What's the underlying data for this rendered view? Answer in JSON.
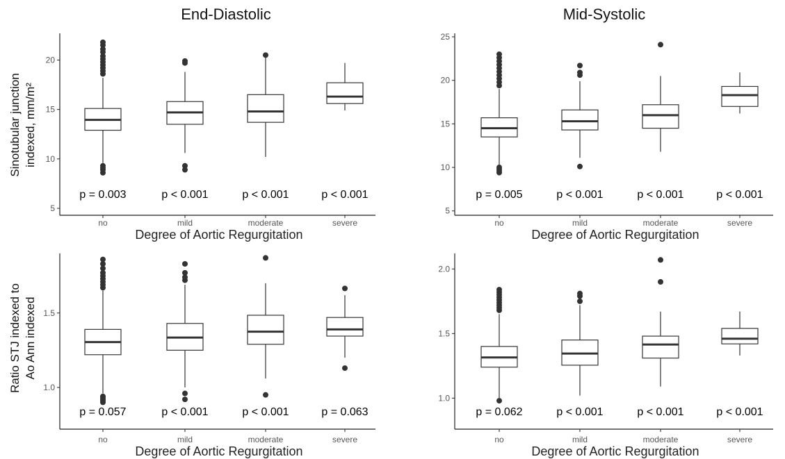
{
  "column_titles": [
    "End-Diastolic",
    "Mid-Systolic"
  ],
  "row_ylabels": [
    [
      "Sinotubular junction",
      "indexed, mm/m²"
    ],
    [
      "Ratio STJ indexed to",
      "Ao Ann indexed"
    ]
  ],
  "chart_data": [
    {
      "type": "box",
      "panel": "top-left",
      "title": "End-Diastolic",
      "xlabel": "Degree of Aortic Regurgitation",
      "ylabel": "Sinotubular junction indexed, mm/m²",
      "ylim": [
        4.3,
        22.7
      ],
      "yticks": [
        5,
        10,
        15,
        20
      ],
      "ytick_labels": [
        "5",
        "10",
        "15",
        "20"
      ],
      "categories": [
        "no",
        "mild",
        "moderate",
        "severe"
      ],
      "boxes": [
        {
          "whisker_low": 9.6,
          "q1": 12.9,
          "median": 13.95,
          "q3": 15.1,
          "whisker_high": 18.2,
          "outliers": [
            21.8,
            21.5,
            21.1,
            20.8,
            20.4,
            20.1,
            19.8,
            19.5,
            19.2,
            18.9,
            18.6,
            9.3,
            9.1,
            8.9,
            8.6
          ]
        },
        {
          "whisker_low": 10.6,
          "q1": 13.5,
          "median": 14.7,
          "q3": 15.8,
          "whisker_high": 18.8,
          "outliers": [
            19.9,
            19.7,
            9.3,
            8.9
          ]
        },
        {
          "whisker_low": 10.2,
          "q1": 13.7,
          "median": 14.8,
          "q3": 16.5,
          "whisker_high": 20.3,
          "outliers": [
            20.5
          ]
        },
        {
          "whisker_low": 14.9,
          "q1": 15.6,
          "median": 16.3,
          "q3": 17.7,
          "whisker_high": 19.7,
          "outliers": []
        }
      ],
      "pvalues": [
        "p = 0.003",
        "p < 0.001",
        "p < 0.001",
        "p < 0.001"
      ]
    },
    {
      "type": "box",
      "panel": "top-right",
      "title": "Mid-Systolic",
      "xlabel": "Degree of Aortic Regurgitation",
      "ylabel": "",
      "ylim": [
        4.5,
        25.4
      ],
      "yticks": [
        5,
        10,
        15,
        20,
        25
      ],
      "ytick_labels": [
        "5",
        "10",
        "15",
        "20",
        "25"
      ],
      "categories": [
        "no",
        "mild",
        "moderate",
        "severe"
      ],
      "boxes": [
        {
          "whisker_low": 10.3,
          "q1": 13.5,
          "median": 14.5,
          "q3": 15.7,
          "whisker_high": 19.0,
          "outliers": [
            23.0,
            22.6,
            22.2,
            21.8,
            21.4,
            21.0,
            20.6,
            20.2,
            19.8,
            19.4,
            10.0,
            9.8,
            9.6,
            9.4
          ]
        },
        {
          "whisker_low": 11.1,
          "q1": 14.3,
          "median": 15.3,
          "q3": 16.6,
          "whisker_high": 19.9,
          "outliers": [
            21.7,
            20.9,
            20.6,
            10.1
          ]
        },
        {
          "whisker_low": 11.8,
          "q1": 14.5,
          "median": 16.0,
          "q3": 17.2,
          "whisker_high": 20.5,
          "outliers": [
            24.1
          ]
        },
        {
          "whisker_low": 16.2,
          "q1": 17.0,
          "median": 18.3,
          "q3": 19.3,
          "whisker_high": 20.9,
          "outliers": []
        }
      ],
      "pvalues": [
        "p = 0.005",
        "p < 0.001",
        "p < 0.001",
        "p < 0.001"
      ]
    },
    {
      "type": "box",
      "panel": "bottom-left",
      "title": "",
      "xlabel": "Degree of Aortic Regurgitation",
      "ylabel": "Ratio STJ indexed to Ao Ann indexed",
      "ylim": [
        0.72,
        1.9
      ],
      "yticks": [
        1.0,
        1.5
      ],
      "ytick_labels": [
        "1.0",
        "1.5"
      ],
      "categories": [
        "no",
        "mild",
        "moderate",
        "severe"
      ],
      "boxes": [
        {
          "whisker_low": 0.96,
          "q1": 1.22,
          "median": 1.305,
          "q3": 1.39,
          "whisker_high": 1.65,
          "outliers": [
            1.86,
            1.83,
            1.8,
            1.77,
            1.75,
            1.73,
            1.71,
            1.69,
            1.67,
            0.94,
            0.93,
            0.92,
            0.91,
            0.9
          ]
        },
        {
          "whisker_low": 1.0,
          "q1": 1.25,
          "median": 1.335,
          "q3": 1.43,
          "whisker_high": 1.69,
          "outliers": [
            1.83,
            1.77,
            1.74,
            1.72,
            0.96,
            0.92
          ]
        },
        {
          "whisker_low": 1.06,
          "q1": 1.29,
          "median": 1.375,
          "q3": 1.485,
          "whisker_high": 1.7,
          "outliers": [
            1.87,
            0.95
          ]
        },
        {
          "whisker_low": 1.2,
          "q1": 1.345,
          "median": 1.39,
          "q3": 1.47,
          "whisker_high": 1.62,
          "outliers": [
            1.665,
            1.13
          ]
        }
      ],
      "pvalues": [
        "p = 0.057",
        "p < 0.001",
        "p < 0.001",
        "p = 0.063"
      ]
    },
    {
      "type": "box",
      "panel": "bottom-right",
      "title": "",
      "xlabel": "Degree of Aortic Regurgitation",
      "ylabel": "",
      "ylim": [
        0.76,
        2.12
      ],
      "yticks": [
        1.0,
        1.5,
        2.0
      ],
      "ytick_labels": [
        "1.0",
        "1.5",
        "2.0"
      ],
      "categories": [
        "no",
        "mild",
        "moderate",
        "severe"
      ],
      "boxes": [
        {
          "whisker_low": 1.0,
          "q1": 1.24,
          "median": 1.315,
          "q3": 1.4,
          "whisker_high": 1.65,
          "outliers": [
            1.84,
            1.82,
            1.8,
            1.78,
            1.76,
            1.74,
            1.72,
            1.7,
            1.68,
            0.98
          ]
        },
        {
          "whisker_low": 1.02,
          "q1": 1.255,
          "median": 1.345,
          "q3": 1.45,
          "whisker_high": 1.72,
          "outliers": [
            1.81,
            1.79,
            1.75
          ]
        },
        {
          "whisker_low": 1.09,
          "q1": 1.31,
          "median": 1.415,
          "q3": 1.48,
          "whisker_high": 1.67,
          "outliers": [
            2.07,
            1.9
          ]
        },
        {
          "whisker_low": 1.33,
          "q1": 1.42,
          "median": 1.46,
          "q3": 1.54,
          "whisker_high": 1.67,
          "outliers": []
        }
      ],
      "pvalues": [
        "p = 0.062",
        "p < 0.001",
        "p < 0.001",
        "p < 0.001"
      ]
    }
  ]
}
